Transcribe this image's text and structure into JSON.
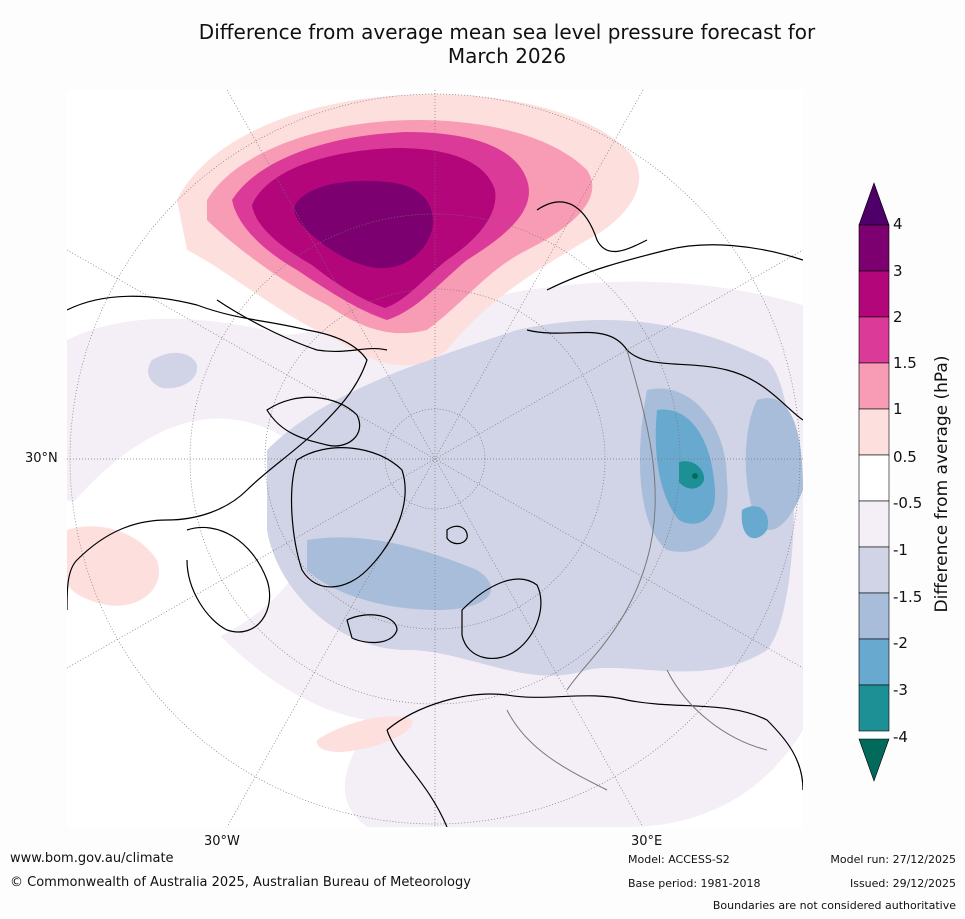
{
  "title_line1": "Difference from average mean sea level pressure forecast for",
  "title_line2": "March 2026",
  "map_labels": {
    "lat_30n": "30°N",
    "lon_30w": "30°W",
    "lon_30e": "30°E"
  },
  "colorbar": {
    "title": "Difference from average (hPa)",
    "ticks": [
      "4",
      "3",
      "2",
      "1.5",
      "1",
      "0.5",
      "-0.5",
      "-1",
      "-1.5",
      "-2",
      "-3",
      "-4"
    ],
    "colors": {
      "ext_high": "#4e0068",
      "3_to_4": "#7d0070",
      "2_to_3": "#b3067a",
      "1.5_to_2": "#dc3a98",
      "1_to_1.5": "#f89cb6",
      "0.5_to_1": "#fde0de",
      "neutral": "#ffffff",
      "-1_to_-0.5": "#f4eff6",
      "-1.5_to_-1": "#d1d3e6",
      "-2_to_-1.5": "#a8bdd9",
      "-3_to_-2": "#67a9cf",
      "-4_to_-3": "#1d9095",
      "ext_low": "#026a5a"
    }
  },
  "footer": {
    "url": "www.bom.gov.au/climate",
    "copyright": "© Commonwealth of Australia 2025, Australian Bureau of Meteorology",
    "model": "Model: ACCESS-S2",
    "base_period": "Base period: 1981-2018",
    "model_run": "Model run: 27/12/2025",
    "issued": "Issued: 29/12/2025",
    "disclaimer": "Boundaries are not considered authoritative"
  }
}
